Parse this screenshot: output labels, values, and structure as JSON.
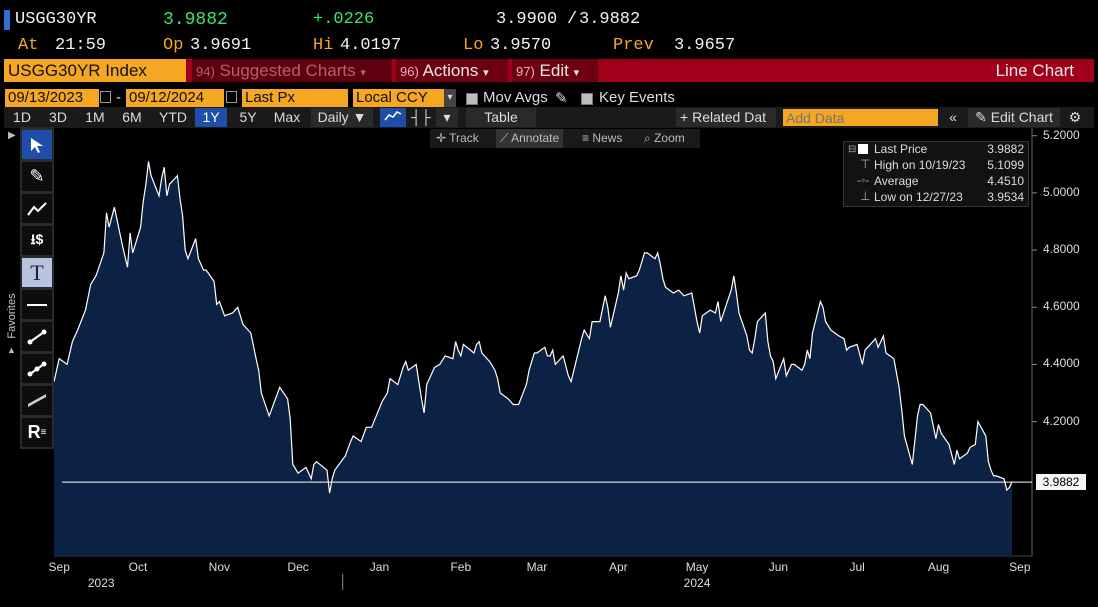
{
  "quote": {
    "ticker": "USGG30YR",
    "last": "3.9882",
    "change": "+.0226",
    "bid_ask_bid": "3.9900",
    "bid_ask_sep": "/",
    "bid_ask_ask": "3.9882",
    "at_label": "At",
    "at_value": "21:59",
    "op_label": "Op",
    "op_value": "3.9691",
    "hi_label": "Hi",
    "hi_value": "4.0197",
    "lo_label": "Lo",
    "lo_value": "3.9570",
    "prev_label": "Prev",
    "prev_value": "3.9657"
  },
  "menubar": {
    "security": "USGG30YR Index",
    "suggested_num": "94)",
    "suggested": "Suggested Charts",
    "actions_num": "96)",
    "actions": "Actions",
    "edit_num": "97)",
    "edit": "Edit",
    "chart_type": "Line Chart"
  },
  "settings": {
    "start_date": "09/13/2023",
    "end_date": "09/12/2024",
    "field": "Last Px",
    "currency": "Local CCY",
    "mov_avgs": "Mov Avgs",
    "key_events": "Key Events"
  },
  "periods": {
    "p1d": "1D",
    "p3d": "3D",
    "p1m": "1M",
    "p6m": "6M",
    "pytd": "YTD",
    "p1y": "1Y",
    "p5y": "5Y",
    "pmax": "Max",
    "frequency": "Daily",
    "table": "Table",
    "related": "Related Dat",
    "add_data_placeholder": "Add Data",
    "edit_chart": "Edit Chart",
    "selected": "1Y"
  },
  "plot_tools": {
    "track": "Track",
    "annotate": "Annotate",
    "news": "News",
    "zoom": "Zoom"
  },
  "sidebar": {
    "favorites": "Favorites",
    "text_tool": "T",
    "re_tool": "R"
  },
  "legend": {
    "last_price_label": "Last Price",
    "last_price_value": "3.9882",
    "high_label": "High on 10/19/23",
    "high_value": "5.1099",
    "average_label": "Average",
    "average_value": "4.4510",
    "low_label": "Low on 12/27/23",
    "low_value": "3.9534"
  },
  "colors": {
    "amber": "#f5a623",
    "menubar": "#a1001a",
    "area_fill": "#0c2244",
    "line": "#ffffff",
    "selected_tab": "#1f4ea8",
    "up_green": "#3ee36a"
  },
  "chart_data": {
    "type": "area",
    "title": "",
    "xlabel": "",
    "ylabel": "",
    "ylim": [
      3.73,
      5.22
    ],
    "y_ticks": [
      "5.2000",
      "5.0000",
      "4.8000",
      "4.6000",
      "4.4000",
      "4.2000"
    ],
    "y_tick_values": [
      5.2,
      5.0,
      4.8,
      4.6,
      4.4,
      4.2
    ],
    "last_value_label": "3.9882",
    "last_value": 3.9882,
    "x_months": [
      "Sep",
      "Oct",
      "Nov",
      "Dec",
      "Jan",
      "Feb",
      "Mar",
      "Apr",
      "May",
      "Jun",
      "Jul",
      "Aug",
      "Sep"
    ],
    "x_month_dates": [
      "2023-09-15",
      "2023-10-15",
      "2023-11-15",
      "2023-12-15",
      "2024-01-15",
      "2024-02-15",
      "2024-03-15",
      "2024-04-15",
      "2024-05-15",
      "2024-06-15",
      "2024-07-15",
      "2024-08-15",
      "2024-09-15"
    ],
    "x_years": [
      "2023",
      "2024"
    ],
    "x_year_dates": [
      "2023-10-01",
      "2024-05-15"
    ],
    "x_range": [
      "2023-09-13",
      "2024-09-12"
    ],
    "series": [
      {
        "name": "Last Price",
        "points": [
          [
            "2023-09-13",
            4.34
          ],
          [
            "2023-09-15",
            4.42
          ],
          [
            "2023-09-18",
            4.4
          ],
          [
            "2023-09-20",
            4.48
          ],
          [
            "2023-09-22",
            4.52
          ],
          [
            "2023-09-25",
            4.59
          ],
          [
            "2023-09-27",
            4.68
          ],
          [
            "2023-09-29",
            4.71
          ],
          [
            "2023-10-02",
            4.79
          ],
          [
            "2023-10-03",
            4.93
          ],
          [
            "2023-10-04",
            4.88
          ],
          [
            "2023-10-06",
            4.95
          ],
          [
            "2023-10-09",
            4.82
          ],
          [
            "2023-10-11",
            4.74
          ],
          [
            "2023-10-12",
            4.86
          ],
          [
            "2023-10-13",
            4.79
          ],
          [
            "2023-10-16",
            4.88
          ],
          [
            "2023-10-17",
            4.97
          ],
          [
            "2023-10-18",
            5.03
          ],
          [
            "2023-10-19",
            5.11
          ],
          [
            "2023-10-20",
            5.06
          ],
          [
            "2023-10-23",
            4.99
          ],
          [
            "2023-10-24",
            5.05
          ],
          [
            "2023-10-25",
            5.09
          ],
          [
            "2023-10-26",
            4.99
          ],
          [
            "2023-10-27",
            5.03
          ],
          [
            "2023-10-30",
            5.06
          ],
          [
            "2023-10-31",
            4.98
          ],
          [
            "2023-11-01",
            4.92
          ],
          [
            "2023-11-02",
            4.8
          ],
          [
            "2023-11-03",
            4.77
          ],
          [
            "2023-11-06",
            4.84
          ],
          [
            "2023-11-07",
            4.77
          ],
          [
            "2023-11-09",
            4.73
          ],
          [
            "2023-11-10",
            4.73
          ],
          [
            "2023-11-13",
            4.69
          ],
          [
            "2023-11-14",
            4.61
          ],
          [
            "2023-11-15",
            4.62
          ],
          [
            "2023-11-17",
            4.57
          ],
          [
            "2023-11-20",
            4.58
          ],
          [
            "2023-11-22",
            4.6
          ],
          [
            "2023-11-24",
            4.54
          ],
          [
            "2023-11-27",
            4.51
          ],
          [
            "2023-11-29",
            4.42
          ],
          [
            "2023-11-30",
            4.38
          ],
          [
            "2023-12-01",
            4.3
          ],
          [
            "2023-12-04",
            4.22
          ],
          [
            "2023-12-06",
            4.27
          ],
          [
            "2023-12-08",
            4.32
          ],
          [
            "2023-12-11",
            4.28
          ],
          [
            "2023-12-12",
            4.21
          ],
          [
            "2023-12-13",
            4.05
          ],
          [
            "2023-12-15",
            4.02
          ],
          [
            "2023-12-18",
            4.04
          ],
          [
            "2023-12-20",
            4.0
          ],
          [
            "2023-12-21",
            4.05
          ],
          [
            "2023-12-22",
            4.06
          ],
          [
            "2023-12-26",
            4.03
          ],
          [
            "2023-12-27",
            3.95
          ],
          [
            "2023-12-28",
            4.0
          ],
          [
            "2023-12-29",
            4.03
          ],
          [
            "2024-01-02",
            4.08
          ],
          [
            "2024-01-04",
            4.13
          ],
          [
            "2024-01-05",
            4.15
          ],
          [
            "2024-01-08",
            4.13
          ],
          [
            "2024-01-10",
            4.18
          ],
          [
            "2024-01-12",
            4.18
          ],
          [
            "2024-01-16",
            4.27
          ],
          [
            "2024-01-18",
            4.3
          ],
          [
            "2024-01-19",
            4.35
          ],
          [
            "2024-01-22",
            4.33
          ],
          [
            "2024-01-24",
            4.39
          ],
          [
            "2024-01-25",
            4.41
          ],
          [
            "2024-01-26",
            4.38
          ],
          [
            "2024-01-29",
            4.4
          ],
          [
            "2024-01-31",
            4.28
          ],
          [
            "2024-02-01",
            4.23
          ],
          [
            "2024-02-02",
            4.33
          ],
          [
            "2024-02-05",
            4.39
          ],
          [
            "2024-02-07",
            4.4
          ],
          [
            "2024-02-09",
            4.43
          ],
          [
            "2024-02-12",
            4.42
          ],
          [
            "2024-02-13",
            4.48
          ],
          [
            "2024-02-14",
            4.45
          ],
          [
            "2024-02-15",
            4.43
          ],
          [
            "2024-02-16",
            4.47
          ],
          [
            "2024-02-20",
            4.44
          ],
          [
            "2024-02-21",
            4.47
          ],
          [
            "2024-02-22",
            4.48
          ],
          [
            "2024-02-23",
            4.44
          ],
          [
            "2024-02-26",
            4.41
          ],
          [
            "2024-02-28",
            4.38
          ],
          [
            "2024-02-29",
            4.35
          ],
          [
            "2024-03-01",
            4.3
          ],
          [
            "2024-03-04",
            4.28
          ],
          [
            "2024-03-06",
            4.26
          ],
          [
            "2024-03-08",
            4.26
          ],
          [
            "2024-03-11",
            4.33
          ],
          [
            "2024-03-12",
            4.38
          ],
          [
            "2024-03-14",
            4.44
          ],
          [
            "2024-03-15",
            4.44
          ],
          [
            "2024-03-18",
            4.46
          ],
          [
            "2024-03-19",
            4.43
          ],
          [
            "2024-03-20",
            4.43
          ],
          [
            "2024-03-21",
            4.45
          ],
          [
            "2024-03-22",
            4.4
          ],
          [
            "2024-03-25",
            4.43
          ],
          [
            "2024-03-27",
            4.36
          ],
          [
            "2024-03-28",
            4.34
          ],
          [
            "2024-04-01",
            4.49
          ],
          [
            "2024-04-02",
            4.52
          ],
          [
            "2024-04-04",
            4.49
          ],
          [
            "2024-04-05",
            4.55
          ],
          [
            "2024-04-08",
            4.55
          ],
          [
            "2024-04-10",
            4.64
          ],
          [
            "2024-04-11",
            4.6
          ],
          [
            "2024-04-12",
            4.53
          ],
          [
            "2024-04-15",
            4.65
          ],
          [
            "2024-04-16",
            4.71
          ],
          [
            "2024-04-17",
            4.66
          ],
          [
            "2024-04-18",
            4.72
          ],
          [
            "2024-04-19",
            4.7
          ],
          [
            "2024-04-22",
            4.71
          ],
          [
            "2024-04-23",
            4.73
          ],
          [
            "2024-04-24",
            4.76
          ],
          [
            "2024-04-25",
            4.79
          ],
          [
            "2024-04-26",
            4.79
          ],
          [
            "2024-04-29",
            4.77
          ],
          [
            "2024-04-30",
            4.79
          ],
          [
            "2024-05-01",
            4.75
          ],
          [
            "2024-05-02",
            4.7
          ],
          [
            "2024-05-03",
            4.67
          ],
          [
            "2024-05-06",
            4.65
          ],
          [
            "2024-05-08",
            4.66
          ],
          [
            "2024-05-10",
            4.64
          ],
          [
            "2024-05-13",
            4.65
          ],
          [
            "2024-05-15",
            4.55
          ],
          [
            "2024-05-16",
            4.51
          ],
          [
            "2024-05-17",
            4.57
          ],
          [
            "2024-05-20",
            4.59
          ],
          [
            "2024-05-22",
            4.58
          ],
          [
            "2024-05-23",
            4.62
          ],
          [
            "2024-05-24",
            4.55
          ],
          [
            "2024-05-28",
            4.66
          ],
          [
            "2024-05-29",
            4.71
          ],
          [
            "2024-05-30",
            4.65
          ],
          [
            "2024-05-31",
            4.58
          ],
          [
            "2024-06-03",
            4.5
          ],
          [
            "2024-06-04",
            4.45
          ],
          [
            "2024-06-05",
            4.44
          ],
          [
            "2024-06-06",
            4.49
          ],
          [
            "2024-06-07",
            4.55
          ],
          [
            "2024-06-10",
            4.58
          ],
          [
            "2024-06-11",
            4.48
          ],
          [
            "2024-06-12",
            4.43
          ],
          [
            "2024-06-13",
            4.41
          ],
          [
            "2024-06-14",
            4.35
          ],
          [
            "2024-06-17",
            4.42
          ],
          [
            "2024-06-18",
            4.36
          ],
          [
            "2024-06-20",
            4.4
          ],
          [
            "2024-06-21",
            4.4
          ],
          [
            "2024-06-24",
            4.38
          ],
          [
            "2024-06-25",
            4.4
          ],
          [
            "2024-06-26",
            4.45
          ],
          [
            "2024-06-27",
            4.42
          ],
          [
            "2024-06-28",
            4.51
          ],
          [
            "2024-07-01",
            4.62
          ],
          [
            "2024-07-02",
            4.6
          ],
          [
            "2024-07-03",
            4.55
          ],
          [
            "2024-07-05",
            4.52
          ],
          [
            "2024-07-08",
            4.5
          ],
          [
            "2024-07-10",
            4.49
          ],
          [
            "2024-07-11",
            4.45
          ],
          [
            "2024-07-12",
            4.46
          ],
          [
            "2024-07-15",
            4.47
          ],
          [
            "2024-07-17",
            4.4
          ],
          [
            "2024-07-18",
            4.45
          ],
          [
            "2024-07-19",
            4.46
          ],
          [
            "2024-07-22",
            4.49
          ],
          [
            "2024-07-23",
            4.46
          ],
          [
            "2024-07-24",
            4.48
          ],
          [
            "2024-07-25",
            4.5
          ],
          [
            "2024-07-26",
            4.44
          ],
          [
            "2024-07-29",
            4.42
          ],
          [
            "2024-07-31",
            4.32
          ],
          [
            "2024-08-01",
            4.24
          ],
          [
            "2024-08-02",
            4.15
          ],
          [
            "2024-08-05",
            4.05
          ],
          [
            "2024-08-07",
            4.22
          ],
          [
            "2024-08-08",
            4.26
          ],
          [
            "2024-08-09",
            4.26
          ],
          [
            "2024-08-12",
            4.23
          ],
          [
            "2024-08-14",
            4.14
          ],
          [
            "2024-08-15",
            4.19
          ],
          [
            "2024-08-16",
            4.16
          ],
          [
            "2024-08-19",
            4.12
          ],
          [
            "2024-08-21",
            4.05
          ],
          [
            "2024-08-22",
            4.1
          ],
          [
            "2024-08-23",
            4.07
          ],
          [
            "2024-08-26",
            4.09
          ],
          [
            "2024-08-27",
            4.11
          ],
          [
            "2024-08-29",
            4.12
          ],
          [
            "2024-08-30",
            4.2
          ],
          [
            "2024-09-02",
            4.15
          ],
          [
            "2024-09-03",
            4.06
          ],
          [
            "2024-09-04",
            4.03
          ],
          [
            "2024-09-05",
            4.01
          ],
          [
            "2024-09-06",
            4.01
          ],
          [
            "2024-09-09",
            4.0
          ],
          [
            "2024-09-10",
            3.96
          ],
          [
            "2024-09-11",
            3.97
          ],
          [
            "2024-09-12",
            3.99
          ]
        ]
      }
    ],
    "grid": false,
    "legend_position": "top-right"
  }
}
